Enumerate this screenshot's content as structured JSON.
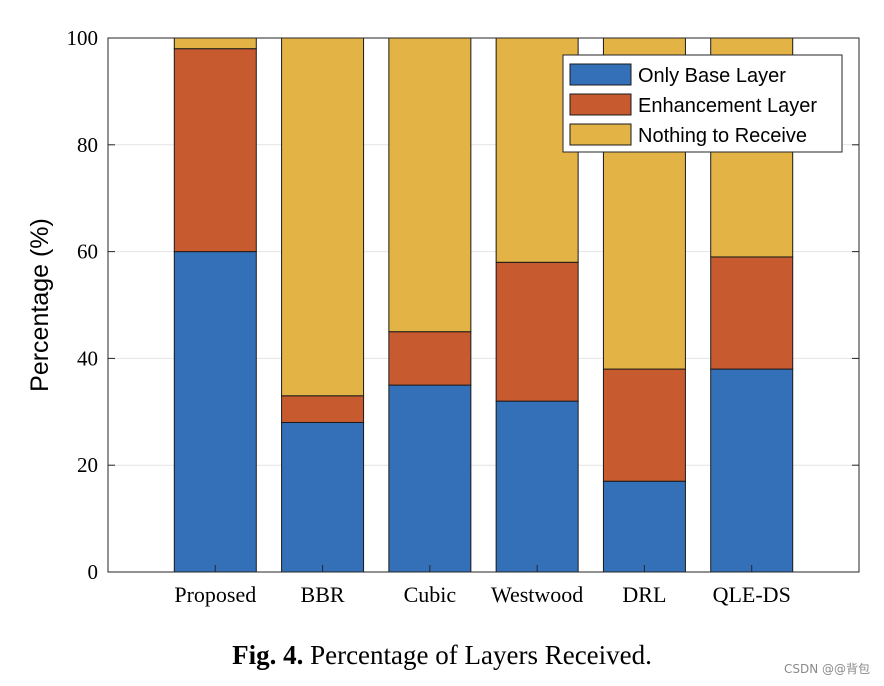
{
  "chart_data": {
    "type": "bar",
    "stacked": true,
    "title": "",
    "xlabel": "",
    "ylabel": "Percentage (%)",
    "ylim": [
      0,
      100
    ],
    "yticks": [
      0,
      20,
      40,
      60,
      80,
      100
    ],
    "grid": true,
    "legend_position": "top-right",
    "categories": [
      "Proposed",
      "BBR",
      "Cubic",
      "Westwood",
      "DRL",
      "QLE-DS"
    ],
    "series": [
      {
        "name": "Only Base Layer",
        "color": "#3370b8",
        "values": [
          60,
          28,
          35,
          32,
          17,
          38
        ]
      },
      {
        "name": "Enhancement Layer",
        "color": "#c85a2f",
        "values": [
          38,
          5,
          10,
          26,
          21,
          21
        ]
      },
      {
        "name": "Nothing to Receive",
        "color": "#e3b345",
        "values": [
          2,
          67,
          55,
          42,
          62,
          41
        ]
      }
    ]
  },
  "caption": {
    "label": "Fig. 4.",
    "text": "Percentage of Layers Received."
  },
  "watermark": "CSDN @@背包"
}
